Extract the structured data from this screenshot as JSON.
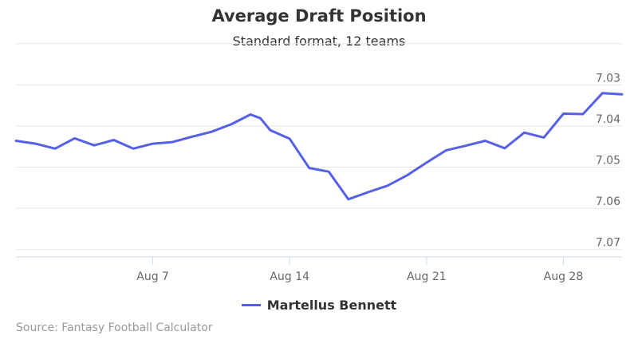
{
  "chart_data": {
    "type": "line",
    "title": "Average Draft Position",
    "subtitle": "Standard format, 12 teams",
    "xlabel": "",
    "ylabel": "",
    "y_reversed": true,
    "ylim": [
      7.0245,
      7.0718
    ],
    "y_ticks": [
      7.03,
      7.04,
      7.05,
      7.06,
      7.07
    ],
    "y_tick_labels": [
      "7.03",
      "7.04",
      "7.05",
      "7.06",
      "7.07"
    ],
    "y_axis_position": "right",
    "grid": true,
    "x_range": [
      "2016-07-31",
      "2016-08-31"
    ],
    "x_ticks": [
      "2016-08-07",
      "2016-08-14",
      "2016-08-21",
      "2016-08-28"
    ],
    "x_tick_labels": [
      "Aug 7",
      "Aug 14",
      "Aug 21",
      "Aug 28"
    ],
    "legend_position": "bottom-center",
    "series": [
      {
        "name": "Martellus Bennett",
        "color": "#5560e6",
        "points": [
          {
            "x": "2016-07-31",
            "y": 7.0436
          },
          {
            "x": "2016-08-01",
            "y": 7.0443
          },
          {
            "x": "2016-08-02",
            "y": 7.0455
          },
          {
            "x": "2016-08-03",
            "y": 7.043
          },
          {
            "x": "2016-08-04",
            "y": 7.0447
          },
          {
            "x": "2016-08-05",
            "y": 7.0434
          },
          {
            "x": "2016-08-06",
            "y": 7.0455
          },
          {
            "x": "2016-08-07",
            "y": 7.0443
          },
          {
            "x": "2016-08-08",
            "y": 7.0439
          },
          {
            "x": "2016-08-09",
            "y": 7.0426
          },
          {
            "x": "2016-08-10",
            "y": 7.0414
          },
          {
            "x": "2016-08-11",
            "y": 7.0396
          },
          {
            "x": "2016-08-12",
            "y": 7.0372
          },
          {
            "x": "2016-08-12T12:00",
            "y": 7.0381
          },
          {
            "x": "2016-08-13",
            "y": 7.041
          },
          {
            "x": "2016-08-14",
            "y": 7.0431
          },
          {
            "x": "2016-08-15",
            "y": 7.0502
          },
          {
            "x": "2016-08-16",
            "y": 7.0511
          },
          {
            "x": "2016-08-17",
            "y": 7.0578
          },
          {
            "x": "2016-08-18",
            "y": 7.0561
          },
          {
            "x": "2016-08-19",
            "y": 7.0545
          },
          {
            "x": "2016-08-20",
            "y": 7.052
          },
          {
            "x": "2016-08-21",
            "y": 7.0489
          },
          {
            "x": "2016-08-22",
            "y": 7.0459
          },
          {
            "x": "2016-08-23",
            "y": 7.0448
          },
          {
            "x": "2016-08-24",
            "y": 7.0436
          },
          {
            "x": "2016-08-25",
            "y": 7.0454
          },
          {
            "x": "2016-08-26",
            "y": 7.0416
          },
          {
            "x": "2016-08-27",
            "y": 7.0428
          },
          {
            "x": "2016-08-28",
            "y": 7.037
          },
          {
            "x": "2016-08-29",
            "y": 7.0371
          },
          {
            "x": "2016-08-30",
            "y": 7.032
          },
          {
            "x": "2016-08-31",
            "y": 7.0323
          }
        ]
      }
    ]
  },
  "credits": "Source: Fantasy Football Calculator"
}
